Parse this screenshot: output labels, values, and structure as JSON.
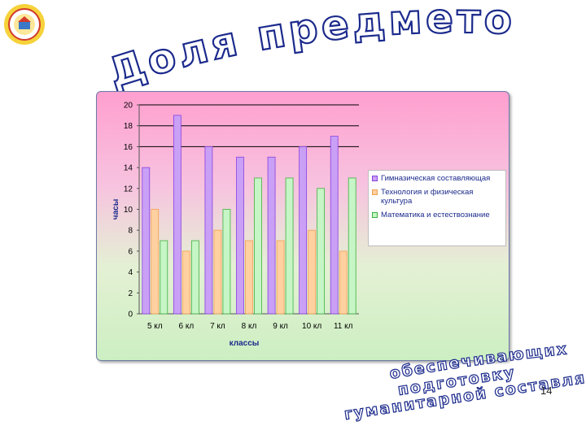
{
  "slide": {
    "title": "Доля предметов,",
    "subtitle_lines": [
      "обеспечивающих",
      "подготовку",
      "гуманитарной составляющей"
    ],
    "page_number": "14"
  },
  "colors": {
    "title_outline": "#1b2a8c",
    "series": [
      "#c9a0f5",
      "#ffd0a0",
      "#c6f5c6"
    ],
    "series_outline": [
      "#8a40e0",
      "#f0a050",
      "#40b040"
    ]
  },
  "chart_data": {
    "type": "bar",
    "xlabel": "классы",
    "ylabel": "часы",
    "ylim": [
      0,
      20
    ],
    "yticks": [
      0,
      2,
      4,
      6,
      8,
      10,
      12,
      14,
      16,
      18,
      20
    ],
    "categories": [
      "5 кл",
      "6 кл",
      "7 кл",
      "8 кл",
      "9 кл",
      "10 кл",
      "11 кл"
    ],
    "series": [
      {
        "name": "Гимназическая составляющая",
        "values": [
          14,
          19,
          16,
          15,
          15,
          16,
          17
        ]
      },
      {
        "name": "Технология и физическая культура",
        "values": [
          10,
          6,
          8,
          7,
          7,
          8,
          6
        ]
      },
      {
        "name": "Математика и естествознание",
        "values": [
          7,
          7,
          10,
          13,
          13,
          12,
          13
        ]
      }
    ],
    "gridlines": [
      16,
      18,
      20
    ],
    "legend_position": "right"
  }
}
